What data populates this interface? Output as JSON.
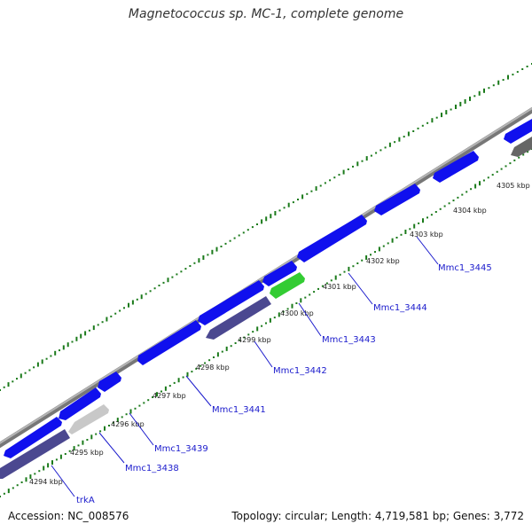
{
  "title": "Magnetococcus sp. MC-1, complete genome",
  "footer": {
    "accession": "Accession: NC_008576",
    "summary": "Topology: circular; Length: 4,719,581 bp; Genes: 3,772"
  },
  "colors": {
    "backbone": "#8c8c8c",
    "forward_cds": "#1010ee",
    "reverse_cds": "#4b4890",
    "rna": "#33cc33",
    "pseudo": "#c8c8c8",
    "other": "#666666",
    "gc_ticks": "#1a7a1a",
    "label_line": "#1a1acc"
  },
  "kbp_labels": [
    "4294 kbp",
    "4295 kbp",
    "4296 kbp",
    "4297 kbp",
    "4298 kbp",
    "4299 kbp",
    "4300 kbp",
    "4301 kbp",
    "4302 kbp",
    "4303 kbp",
    "4304 kbp",
    "4305 kbp"
  ],
  "gene_labels": [
    "trkA",
    "Mmc1_3438",
    "Mmc1_3439",
    "Mmc1_3441",
    "Mmc1_3442",
    "Mmc1_3443",
    "Mmc1_3444",
    "Mmc1_3445"
  ]
}
